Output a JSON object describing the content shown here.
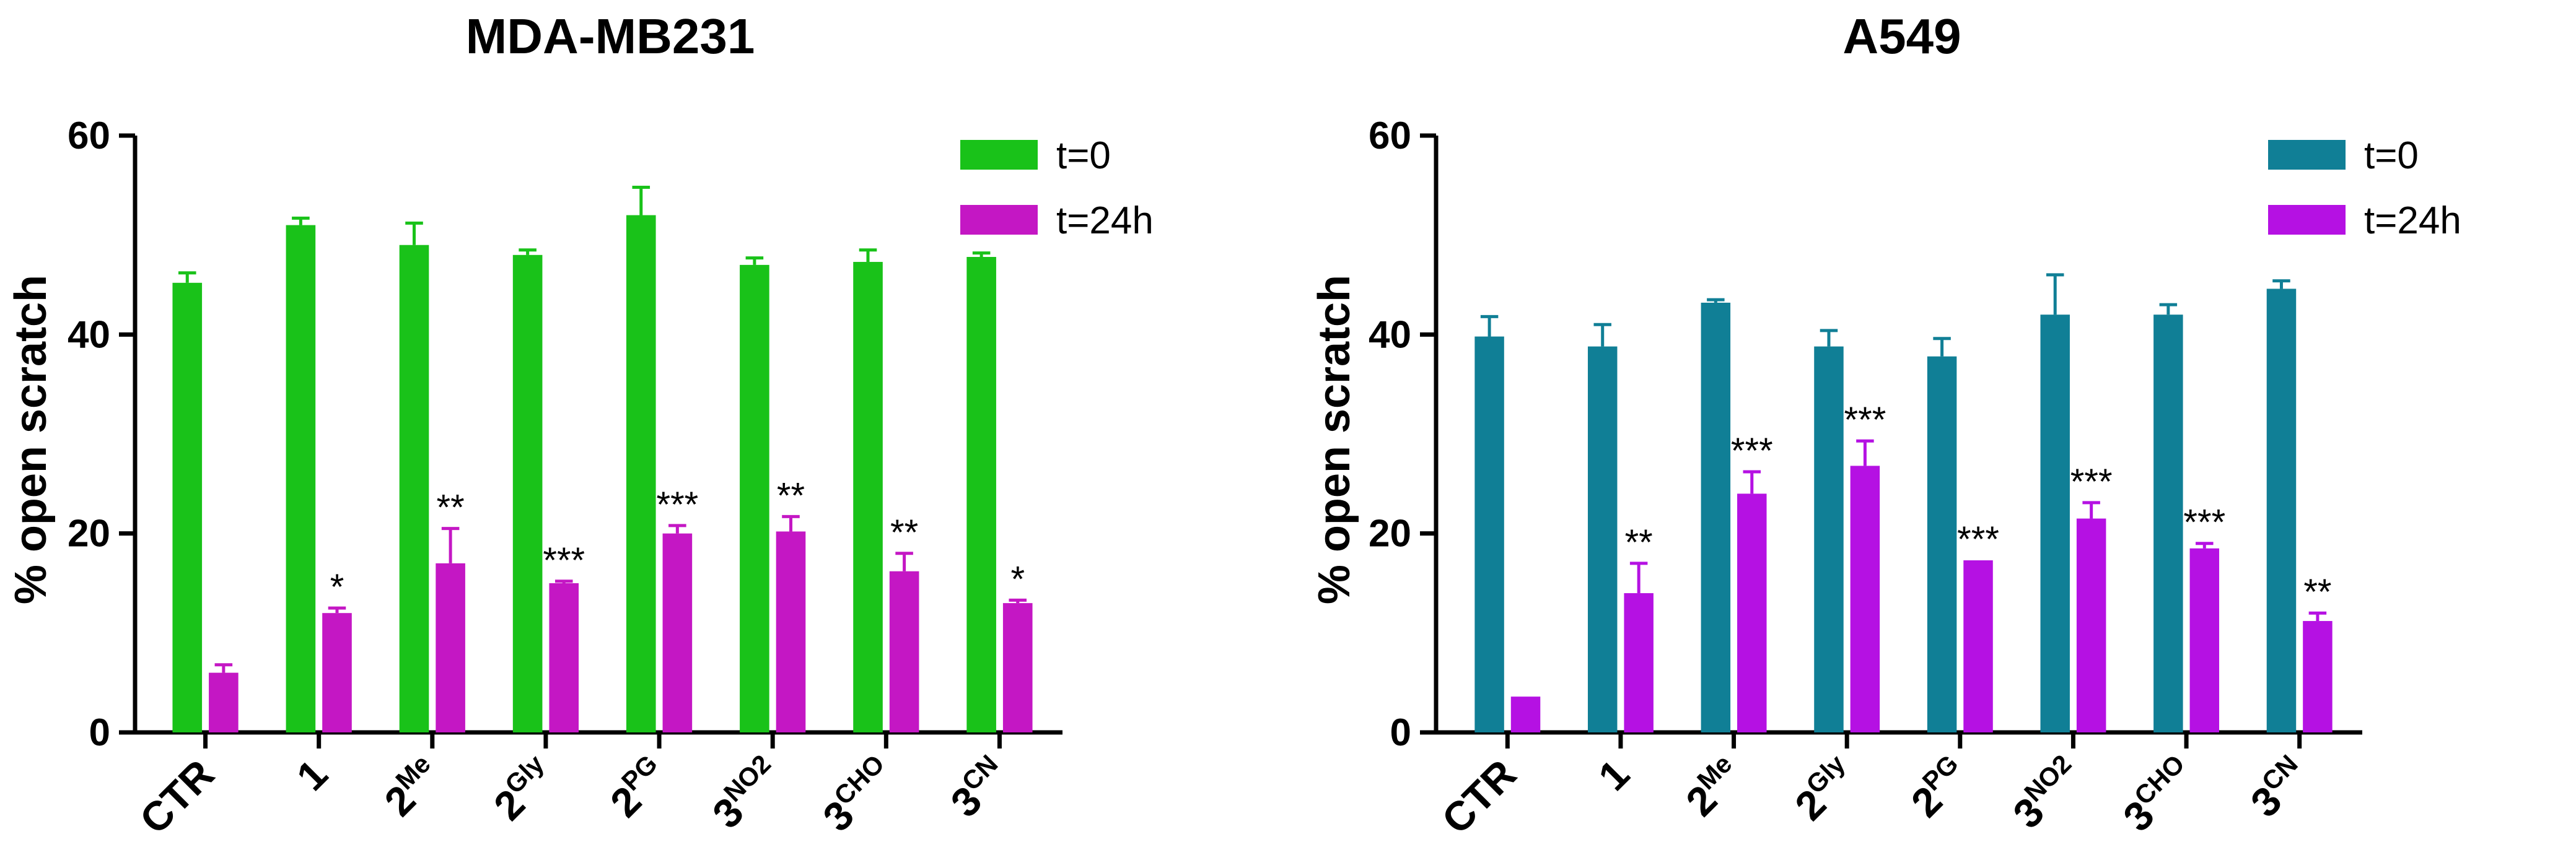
{
  "chart_data": [
    {
      "type": "bar",
      "title": "MDA-MB231",
      "ylabel": "% open scratch",
      "xlabel": "",
      "ylim": [
        0,
        60
      ],
      "yticks": [
        0,
        20,
        40,
        60
      ],
      "categories": [
        {
          "main": "CTR",
          "sub": ""
        },
        {
          "main": "1",
          "sub": ""
        },
        {
          "main": "2",
          "sub": "Me"
        },
        {
          "main": "2",
          "sub": "Gly"
        },
        {
          "main": "2",
          "sub": "PG"
        },
        {
          "main": "3",
          "sub": "NO2"
        },
        {
          "main": "3",
          "sub": "CHO"
        },
        {
          "main": "3",
          "sub": "CN"
        }
      ],
      "series": [
        {
          "name": "t=0",
          "color": "#19c219",
          "values": [
            45.2,
            51.0,
            49.0,
            48.0,
            52.0,
            47.0,
            47.3,
            47.8
          ],
          "errors": [
            1.0,
            0.7,
            2.2,
            0.5,
            2.8,
            0.7,
            1.2,
            0.4
          ],
          "significance": [
            "",
            "",
            "",
            "",
            "",
            "",
            "",
            ""
          ]
        },
        {
          "name": "t=24h",
          "color": "#c417c4",
          "values": [
            6.0,
            12.0,
            17.0,
            15.0,
            20.0,
            20.2,
            16.2,
            13.0
          ],
          "errors": [
            0.8,
            0.5,
            3.5,
            0.2,
            0.8,
            1.5,
            1.8,
            0.3
          ],
          "significance": [
            "",
            "*",
            "**",
            "***",
            "***",
            "**",
            "**",
            "*"
          ]
        }
      ],
      "legend": "top-right"
    },
    {
      "type": "bar",
      "title": "A549",
      "ylabel": "% open scratch",
      "xlabel": "",
      "ylim": [
        0,
        60
      ],
      "yticks": [
        0,
        20,
        40,
        60
      ],
      "categories": [
        {
          "main": "CTR",
          "sub": ""
        },
        {
          "main": "1",
          "sub": ""
        },
        {
          "main": "2",
          "sub": "Me"
        },
        {
          "main": "2",
          "sub": "Gly"
        },
        {
          "main": "2",
          "sub": "PG"
        },
        {
          "main": "3",
          "sub": "NO2"
        },
        {
          "main": "3",
          "sub": "CHO"
        },
        {
          "main": "3",
          "sub": "CN"
        }
      ],
      "series": [
        {
          "name": "t=0",
          "color": "#107f96",
          "values": [
            39.8,
            38.8,
            43.2,
            38.8,
            37.8,
            42.0,
            42.0,
            44.6
          ],
          "errors": [
            2.0,
            2.2,
            0.3,
            1.6,
            1.8,
            4.0,
            1.0,
            0.8
          ],
          "significance": [
            "",
            "",
            "",
            "",
            "",
            "",
            "",
            ""
          ]
        },
        {
          "name": "t=24h",
          "color": "#b511e3",
          "values": [
            3.6,
            14.0,
            24.0,
            26.8,
            17.3,
            21.5,
            18.5,
            11.2
          ],
          "errors": [
            0.0,
            3.0,
            2.2,
            2.5,
            0.0,
            1.6,
            0.5,
            0.8
          ],
          "significance": [
            "",
            "**",
            "***",
            "***",
            "***",
            "***",
            "***",
            "**"
          ]
        }
      ],
      "legend": "top-right"
    }
  ]
}
